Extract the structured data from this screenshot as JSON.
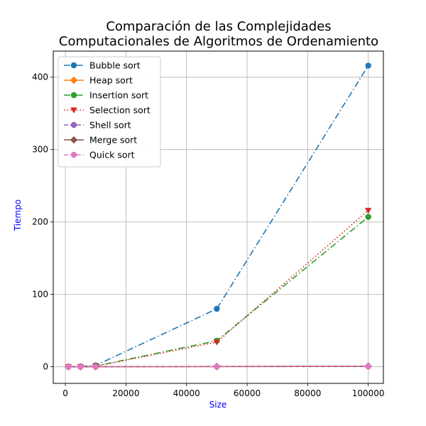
{
  "chart_data": {
    "type": "line",
    "title_lines": [
      "Comparación de las Complejidades",
      "Computacionales de Algoritmos de Ordenamiento"
    ],
    "xlabel": "Size",
    "ylabel": "Tiempo",
    "label_color": "#0000ff",
    "xlim": [
      -4000,
      105000
    ],
    "ylim": [
      -23,
      436
    ],
    "x_ticks": [
      0,
      20000,
      40000,
      60000,
      80000,
      100000
    ],
    "y_ticks": [
      0,
      100,
      200,
      300,
      400
    ],
    "grid": true,
    "legend_position": "upper-left",
    "x": [
      1000,
      5000,
      10000,
      50000,
      100000
    ],
    "series": [
      {
        "name": "Bubble sort",
        "color": "#1f77b4",
        "marker": "circle",
        "line": "dashdot",
        "values": [
          0.05,
          0.4,
          1.8,
          80,
          416
        ]
      },
      {
        "name": "Heap sort",
        "color": "#ff7f0e",
        "marker": "diamond",
        "line": "solid",
        "values": [
          0.01,
          0.03,
          0.06,
          0.35,
          0.8
        ]
      },
      {
        "name": "Insertion sort",
        "color": "#2ca02c",
        "marker": "circle",
        "line": "dashdot",
        "values": [
          0.02,
          0.2,
          0.9,
          36,
          207
        ]
      },
      {
        "name": "Selection sort",
        "color": "#d62728",
        "marker": "triangle-down",
        "line": "dotted",
        "values": [
          0.02,
          0.2,
          0.8,
          34,
          216
        ]
      },
      {
        "name": "Shell sort",
        "color": "#9467bd",
        "marker": "circle",
        "line": "dashed",
        "values": [
          0.0,
          0.01,
          0.02,
          0.2,
          0.5
        ]
      },
      {
        "name": "Merge sort",
        "color": "#8c564b",
        "marker": "diamond",
        "line": "solid",
        "values": [
          0.01,
          0.03,
          0.05,
          0.3,
          0.7
        ]
      },
      {
        "name": "Quick sort",
        "color": "#e377c2",
        "marker": "circle",
        "line": "dashed",
        "values": [
          0.0,
          0.01,
          0.02,
          0.15,
          0.4
        ]
      }
    ]
  }
}
